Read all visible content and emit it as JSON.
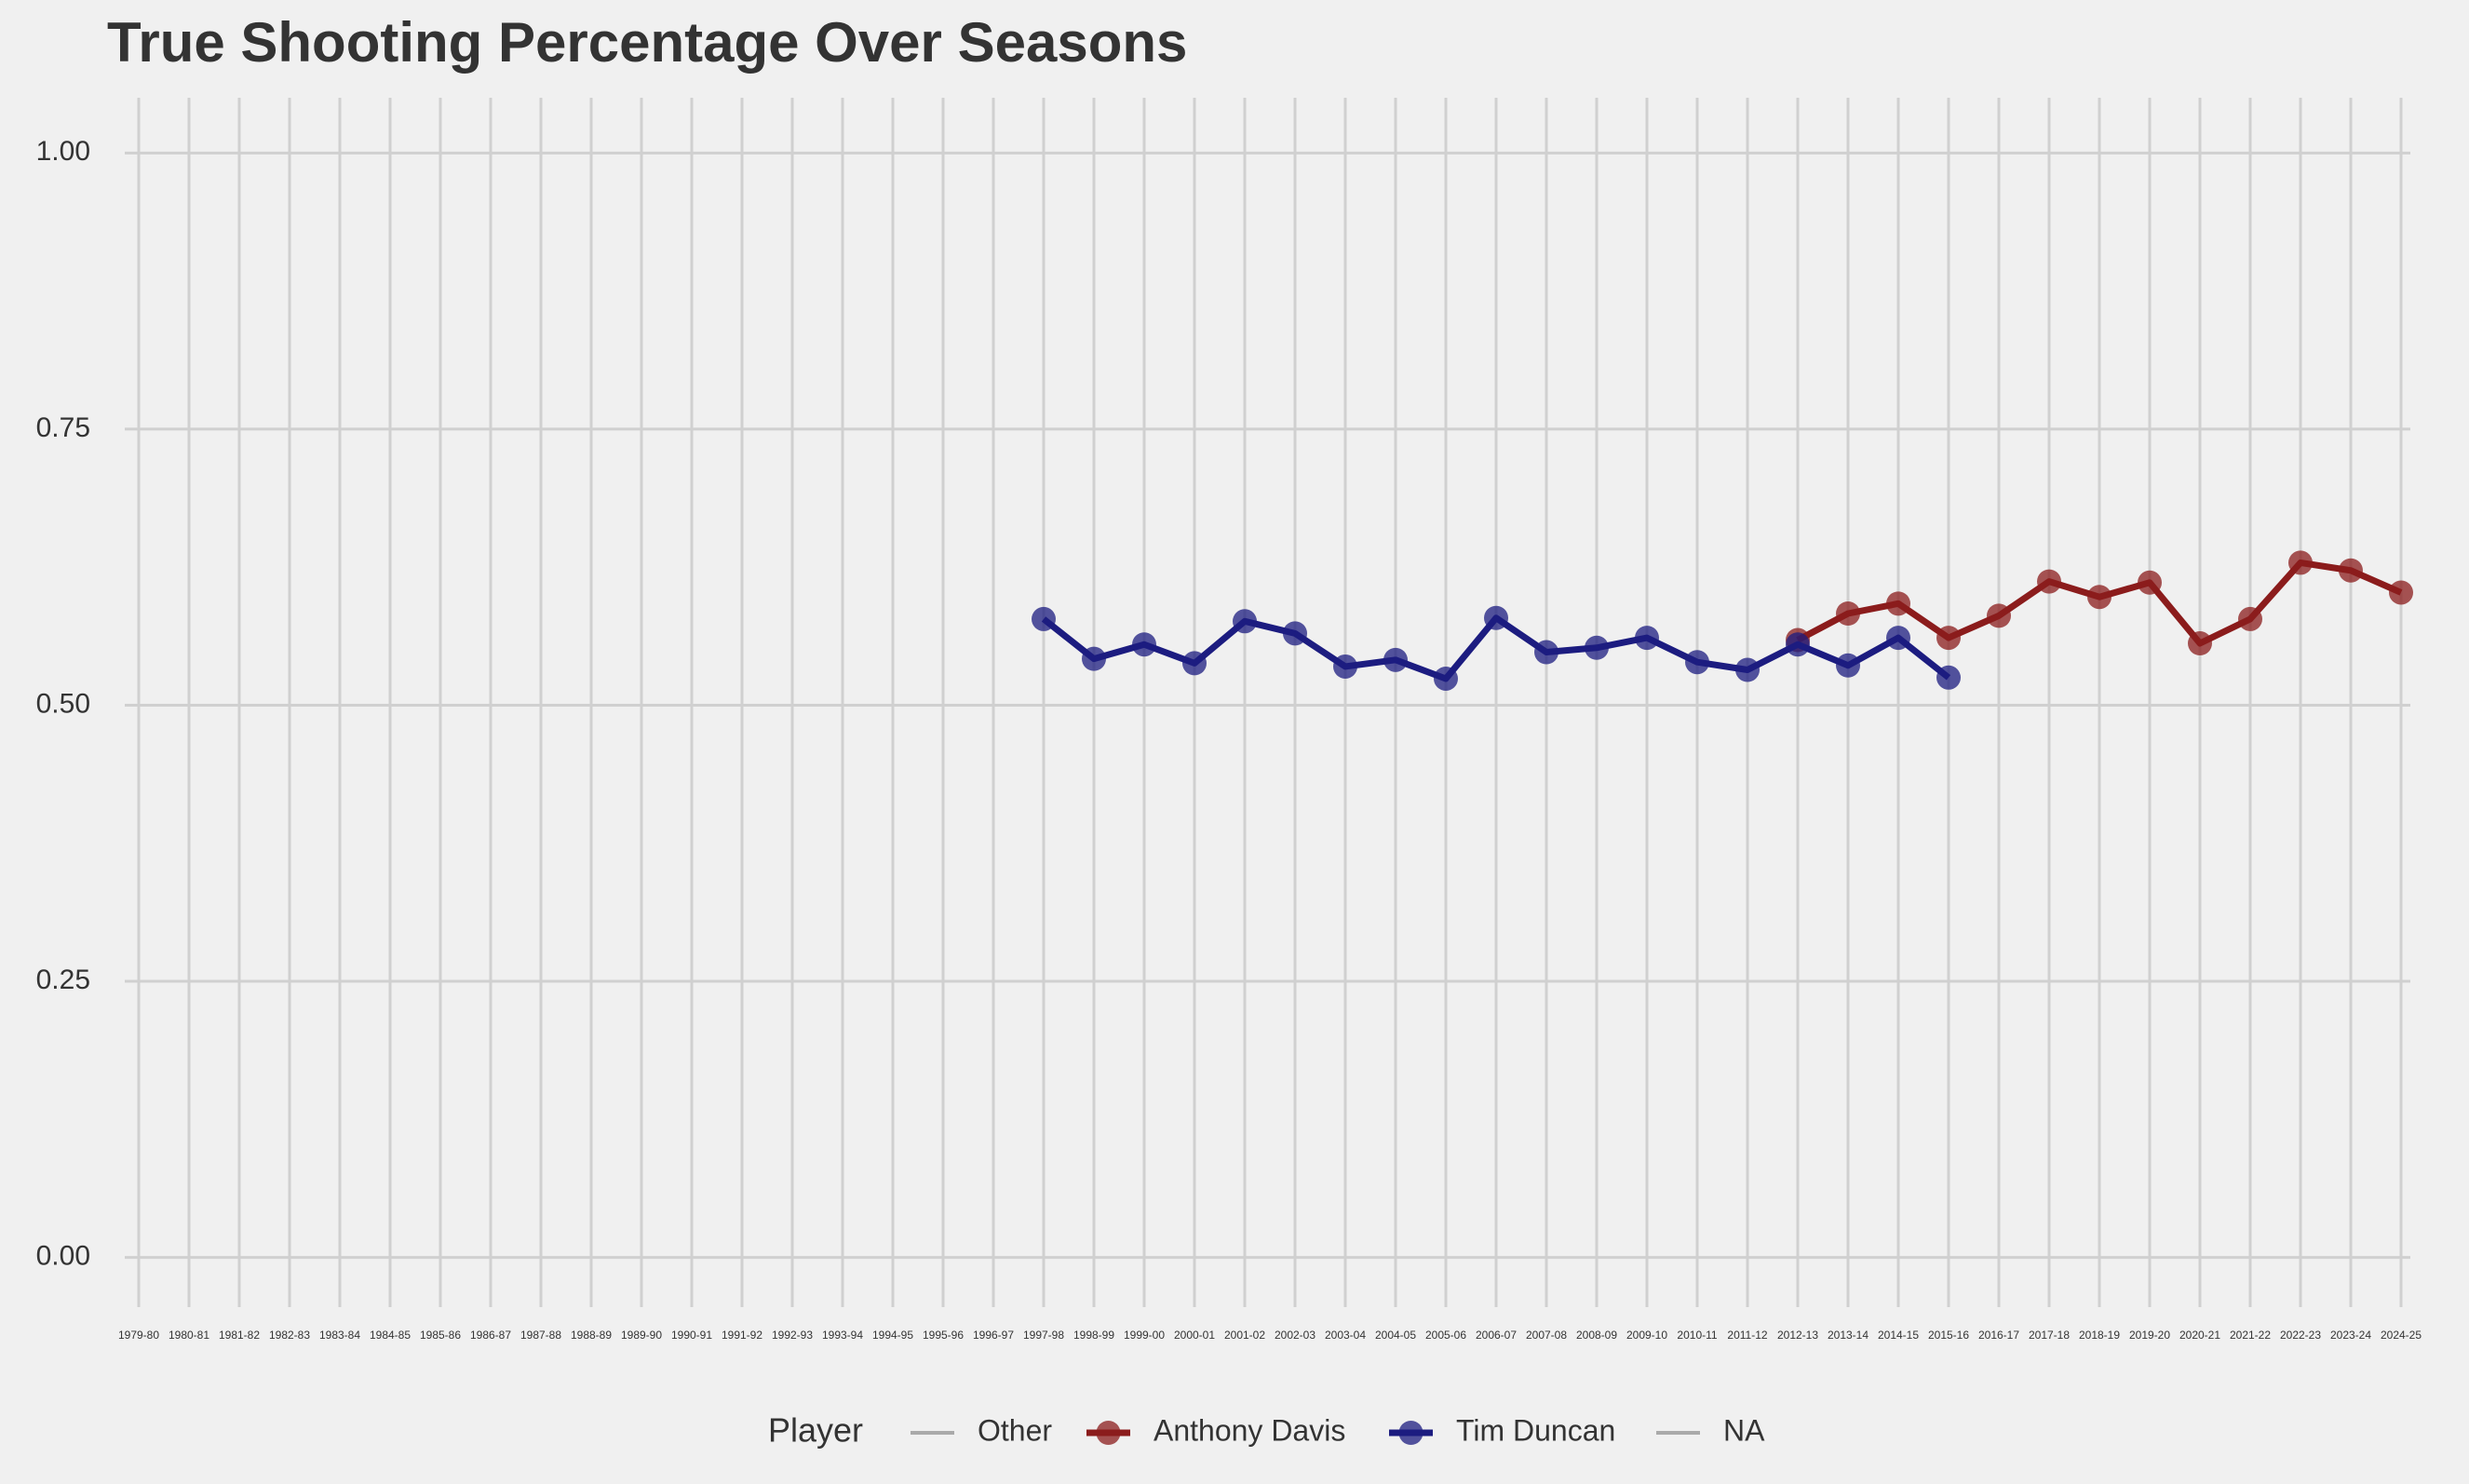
{
  "chart_data": {
    "type": "line",
    "title": "True Shooting Percentage Over Seasons",
    "categories": [
      "1979-80",
      "1980-81",
      "1981-82",
      "1982-83",
      "1983-84",
      "1984-85",
      "1985-86",
      "1986-87",
      "1987-88",
      "1988-89",
      "1989-90",
      "1990-91",
      "1991-92",
      "1992-93",
      "1993-94",
      "1994-95",
      "1995-96",
      "1996-97",
      "1997-98",
      "1998-99",
      "1999-00",
      "2000-01",
      "2001-02",
      "2002-03",
      "2003-04",
      "2004-05",
      "2005-06",
      "2006-07",
      "2007-08",
      "2008-09",
      "2009-10",
      "2010-11",
      "2011-12",
      "2012-13",
      "2013-14",
      "2014-15",
      "2015-16",
      "2016-17",
      "2017-18",
      "2018-19",
      "2019-20",
      "2020-21",
      "2021-22",
      "2022-23",
      "2023-24",
      "2024-25"
    ],
    "legend_title": "Player",
    "series": [
      {
        "name": "Other",
        "color": "#aaaaaa",
        "values": [
          null,
          null,
          null,
          null,
          null,
          null,
          null,
          null,
          null,
          null,
          null,
          null,
          null,
          null,
          null,
          null,
          null,
          null,
          null,
          null,
          null,
          null,
          null,
          null,
          null,
          null,
          null,
          null,
          null,
          null,
          null,
          null,
          null,
          null,
          null,
          null,
          null,
          null,
          null,
          null,
          null,
          null,
          null,
          null,
          null,
          null
        ]
      },
      {
        "name": "Anthony Davis",
        "color": "#8b1c1c",
        "values": [
          null,
          null,
          null,
          null,
          null,
          null,
          null,
          null,
          null,
          null,
          null,
          null,
          null,
          null,
          null,
          null,
          null,
          null,
          null,
          null,
          null,
          null,
          null,
          null,
          null,
          null,
          null,
          null,
          null,
          null,
          null,
          null,
          null,
          0.559,
          0.583,
          0.592,
          0.561,
          0.581,
          0.612,
          0.598,
          0.611,
          0.556,
          0.578,
          0.629,
          0.622,
          0.602
        ]
      },
      {
        "name": "Tim Duncan",
        "color": "#1c1c80",
        "values": [
          null,
          null,
          null,
          null,
          null,
          null,
          null,
          null,
          null,
          null,
          null,
          null,
          null,
          null,
          null,
          null,
          null,
          null,
          0.578,
          0.542,
          0.555,
          0.538,
          0.576,
          0.565,
          0.535,
          0.541,
          0.524,
          0.579,
          0.548,
          0.552,
          0.561,
          0.539,
          0.532,
          0.555,
          0.536,
          0.561,
          0.525,
          null,
          null,
          null,
          null,
          null,
          null,
          null,
          null,
          null
        ]
      },
      {
        "name": "NA",
        "color": "#aaaaaa",
        "values": [
          null,
          null,
          null,
          null,
          null,
          null,
          null,
          null,
          null,
          null,
          null,
          null,
          null,
          null,
          null,
          null,
          null,
          null,
          null,
          null,
          null,
          null,
          null,
          null,
          null,
          null,
          null,
          null,
          null,
          null,
          null,
          null,
          null,
          null,
          null,
          null,
          null,
          null,
          null,
          null,
          null,
          null,
          null,
          null,
          null,
          null
        ]
      }
    ],
    "ylim": [
      -0.045,
      1.05
    ],
    "yticks": [
      {
        "value": 0,
        "label": "0.00"
      },
      {
        "value": 0.25,
        "label": "0.25"
      },
      {
        "value": 0.5,
        "label": "0.50"
      },
      {
        "value": 0.75,
        "label": "0.75"
      },
      {
        "value": 1,
        "label": "1.00"
      }
    ],
    "grid": true
  }
}
